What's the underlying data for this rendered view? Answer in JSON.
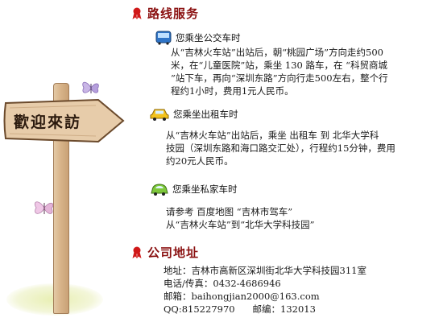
{
  "signpost": {
    "label": "歡迎來訪",
    "icons": [
      "wooden-signpost",
      "butterfly",
      "butterfly"
    ]
  },
  "route": {
    "title": "路线服务",
    "title_icon": "red-ribbon-icon",
    "bus": {
      "icon": "bus-icon",
      "heading": "您乘坐公交车时",
      "lines": [
        "从“吉林火车站”出站后，朝“桃园广场”方向走约500",
        "米，在“儿童医院”站，乘坐 130 路车，在 “科贸商城",
        "”站下车，再向“深圳东路”方向行走500左右，整个行",
        "程约1小时，费用1元人民币。"
      ]
    },
    "taxi": {
      "icon": "taxi-icon",
      "heading": "您乘坐出租车时",
      "lines": [
        "从“吉林火车站”出站后，乘坐 出租车 到 北华大学科",
        "技园（深圳东路和海口路交汇处），行程约15分钟，费用",
        "约20元人民币。"
      ]
    },
    "car": {
      "icon": "car-icon",
      "heading": "您乘坐私家车时",
      "lines": [
        "请参考 百度地图 “吉林市驾车”",
        "从“吉林火车站”到“北华大学科技园”"
      ]
    }
  },
  "company": {
    "title": "公司地址",
    "title_icon": "red-ribbon-icon",
    "lines": [
      "地址：吉林市高新区深圳街北华大学科技园311室",
      "电话/传真：0432-4686946",
      "邮箱：baihongjian2000@163.com",
      "QQ:815227970      邮编：132013"
    ]
  },
  "colors": {
    "heading": "#8a1010",
    "ribbon": "#d01818",
    "wood": "#d8b48a",
    "board_outline": "#6b4a2c"
  }
}
